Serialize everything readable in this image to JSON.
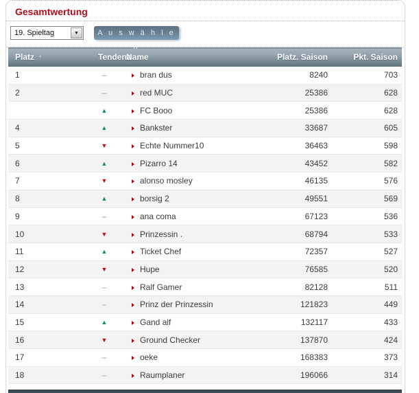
{
  "page": {
    "title": "Gesamtwertung"
  },
  "controls": {
    "matchday_select": {
      "value": "19. Spieltag"
    },
    "submit_label": "A u s w ä h l e n"
  },
  "icons": {
    "sort_asc": "↑",
    "select_arrow": "▼",
    "trend_up": "▲",
    "trend_down": "▼",
    "trend_same": "–",
    "name_bullet": "triangle-right"
  },
  "colors": {
    "title_red": "#b00d1d",
    "trend_up_green": "#178a64",
    "trend_down_red": "#c40a18",
    "trend_same_gray": "#9a9a9a",
    "header_gradient_top": "#a7b3bc",
    "header_gradient_bottom": "#61767f",
    "zebra_row": "#f3f3f3",
    "button_gradient_top": "#5d7081",
    "button_gradient_bottom": "#7e9cb6"
  },
  "table": {
    "columns": [
      "Platz",
      "Tendenz",
      "Name",
      "Platz. Saison",
      "Pkt. Saison"
    ],
    "sort": {
      "column": "Platz",
      "direction": "asc"
    },
    "rows": [
      {
        "platz": "1",
        "tendenz": "same",
        "name": "bran dus",
        "platz_saison": "8240",
        "pkt_saison": "703"
      },
      {
        "platz": "2",
        "tendenz": "same",
        "name": "red MUC",
        "platz_saison": "25386",
        "pkt_saison": "628"
      },
      {
        "platz": "",
        "tendenz": "up",
        "name": "FC Booo",
        "platz_saison": "25386",
        "pkt_saison": "628"
      },
      {
        "platz": "4",
        "tendenz": "up",
        "name": "Bankster",
        "platz_saison": "33687",
        "pkt_saison": "605"
      },
      {
        "platz": "5",
        "tendenz": "down",
        "name": "Echte Nummer10",
        "platz_saison": "36463",
        "pkt_saison": "598"
      },
      {
        "platz": "6",
        "tendenz": "up",
        "name": "Pizarro 14",
        "platz_saison": "43452",
        "pkt_saison": "582"
      },
      {
        "platz": "7",
        "tendenz": "down",
        "name": "alonso mosley",
        "platz_saison": "46135",
        "pkt_saison": "576"
      },
      {
        "platz": "8",
        "tendenz": "up",
        "name": "borsig 2",
        "platz_saison": "49551",
        "pkt_saison": "569"
      },
      {
        "platz": "9",
        "tendenz": "same",
        "name": "ana coma",
        "platz_saison": "67123",
        "pkt_saison": "536"
      },
      {
        "platz": "10",
        "tendenz": "down",
        "name": "Prinzessin .",
        "platz_saison": "68794",
        "pkt_saison": "533"
      },
      {
        "platz": "11",
        "tendenz": "up",
        "name": "Ticket Chef",
        "platz_saison": "72357",
        "pkt_saison": "527"
      },
      {
        "platz": "12",
        "tendenz": "down",
        "name": "Hupe",
        "platz_saison": "76585",
        "pkt_saison": "520"
      },
      {
        "platz": "13",
        "tendenz": "same",
        "name": "Ralf Gamer",
        "platz_saison": "82128",
        "pkt_saison": "511"
      },
      {
        "platz": "14",
        "tendenz": "same",
        "name": "Prinz der Prinzessin",
        "platz_saison": "121823",
        "pkt_saison": "449"
      },
      {
        "platz": "15",
        "tendenz": "up",
        "name": "Gand alf",
        "platz_saison": "132117",
        "pkt_saison": "433"
      },
      {
        "platz": "16",
        "tendenz": "down",
        "name": "Ground Checker",
        "platz_saison": "137870",
        "pkt_saison": "424"
      },
      {
        "platz": "17",
        "tendenz": "same",
        "name": "oeke",
        "platz_saison": "168383",
        "pkt_saison": "373"
      },
      {
        "platz": "18",
        "tendenz": "same",
        "name": "Raumplaner",
        "platz_saison": "196066",
        "pkt_saison": "314"
      }
    ]
  }
}
